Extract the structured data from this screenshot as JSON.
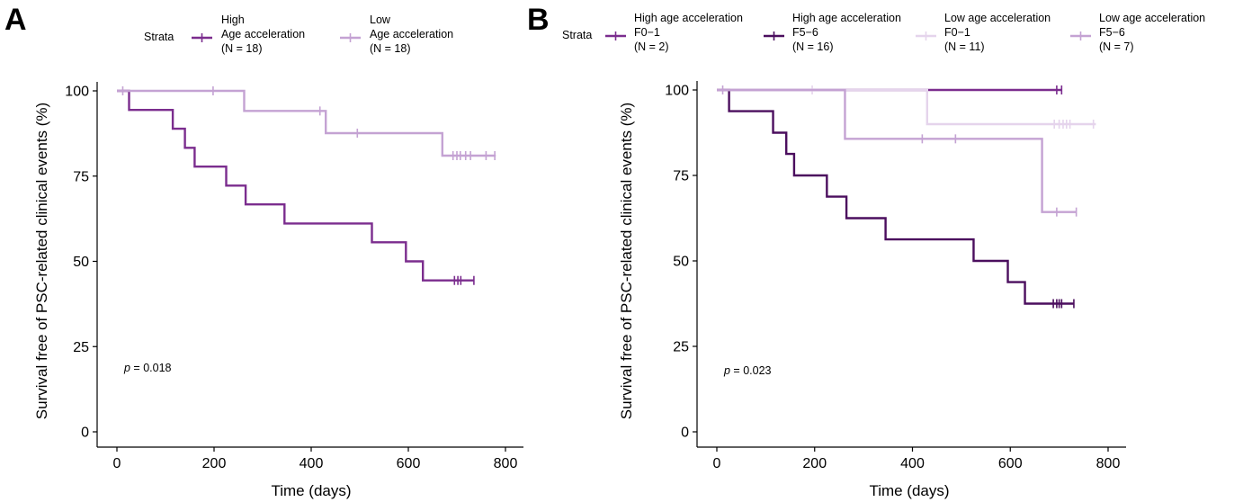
{
  "chart_data": [
    {
      "type": "line",
      "panel_label": "A",
      "legend_title": "Strata",
      "xlabel": "Time (days)",
      "ylabel": "Survival free of PSC-related clinical events (%)",
      "xlim": [
        0,
        800
      ],
      "ylim": [
        0,
        100
      ],
      "xticks": [
        0,
        200,
        400,
        600,
        800
      ],
      "yticks": [
        0,
        25,
        50,
        75,
        100
      ],
      "grid": false,
      "legend_position": "top",
      "p_symbol": "p",
      "p_value": " = 0.018",
      "series": [
        {
          "legend_lines": [
            "High",
            "Age acceleration",
            "(N = 18)"
          ],
          "color": "#7B2D8E",
          "steps": [
            [
              0,
              100
            ],
            [
              25,
              94.4
            ],
            [
              115,
              88.9
            ],
            [
              140,
              83.3
            ],
            [
              160,
              77.8
            ],
            [
              225,
              72.2
            ],
            [
              265,
              66.7
            ],
            [
              345,
              61.1
            ],
            [
              525,
              55.6
            ],
            [
              595,
              50.0
            ],
            [
              630,
              44.4
            ],
            [
              735,
              44.4
            ]
          ],
          "censored": [
            [
              695,
              44.4
            ],
            [
              702,
              44.4
            ],
            [
              708,
              44.4
            ],
            [
              735,
              44.4
            ]
          ]
        },
        {
          "legend_lines": [
            "Low",
            "Age acceleration",
            "(N = 18)"
          ],
          "color": "#C4A2D3",
          "steps": [
            [
              0,
              100
            ],
            [
              262,
              94.1
            ],
            [
              430,
              87.6
            ],
            [
              670,
              81.0
            ],
            [
              780,
              81.0
            ]
          ],
          "censored": [
            [
              12,
              100
            ],
            [
              198,
              100
            ],
            [
              418,
              94.1
            ],
            [
              495,
              87.6
            ],
            [
              692,
              81.0
            ],
            [
              700,
              81.0
            ],
            [
              707,
              81.0
            ],
            [
              718,
              81.0
            ],
            [
              728,
              81.0
            ],
            [
              760,
              81.0
            ],
            [
              778,
              81.0
            ]
          ]
        }
      ]
    },
    {
      "type": "line",
      "panel_label": "B",
      "legend_title": "Strata",
      "xlabel": "Time (days)",
      "ylabel": "Survival free of PSC-related clinical events (%)",
      "xlim": [
        0,
        800
      ],
      "ylim": [
        0,
        100
      ],
      "xticks": [
        0,
        200,
        400,
        600,
        800
      ],
      "yticks": [
        0,
        25,
        50,
        75,
        100
      ],
      "grid": false,
      "legend_position": "top",
      "p_symbol": "p",
      "p_value": " = 0.023",
      "series": [
        {
          "legend_lines": [
            "High age acceleration",
            "F0−1",
            "(N = 2)"
          ],
          "color": "#7B2D8E",
          "steps": [
            [
              0,
              100
            ],
            [
              705,
              100
            ]
          ],
          "censored": [
            [
              695,
              100
            ],
            [
              705,
              100
            ]
          ]
        },
        {
          "legend_lines": [
            "High age acceleration",
            "F5−6",
            "(N = 16)"
          ],
          "color": "#4B0E5E",
          "steps": [
            [
              0,
              100
            ],
            [
              25,
              93.8
            ],
            [
              115,
              87.5
            ],
            [
              142,
              81.3
            ],
            [
              158,
              75.0
            ],
            [
              225,
              68.8
            ],
            [
              265,
              62.5
            ],
            [
              345,
              56.3
            ],
            [
              525,
              50.0
            ],
            [
              595,
              43.8
            ],
            [
              630,
              37.5
            ],
            [
              730,
              37.5
            ]
          ],
          "censored": [
            [
              688,
              37.5
            ],
            [
              695,
              37.5
            ],
            [
              700,
              37.5
            ],
            [
              705,
              37.5
            ],
            [
              730,
              37.5
            ]
          ]
        },
        {
          "legend_lines": [
            "Low age acceleration",
            "F0−1",
            "(N = 11)"
          ],
          "color": "#E5D4EC",
          "steps": [
            [
              0,
              100
            ],
            [
              430,
              90.0
            ],
            [
              775,
              90.0
            ]
          ],
          "censored": [
            [
              195,
              100
            ],
            [
              690,
              90.0
            ],
            [
              700,
              90.0
            ],
            [
              708,
              90.0
            ],
            [
              715,
              90.0
            ],
            [
              722,
              90.0
            ],
            [
              770,
              90.0
            ]
          ]
        },
        {
          "legend_lines": [
            "Low age acceleration",
            "F5−6",
            "(N = 7)"
          ],
          "color": "#C4A2D3",
          "steps": [
            [
              0,
              100
            ],
            [
              262,
              85.7
            ],
            [
              665,
              64.3
            ],
            [
              735,
              64.3
            ]
          ],
          "censored": [
            [
              12,
              100
            ],
            [
              420,
              85.7
            ],
            [
              488,
              85.7
            ],
            [
              695,
              64.3
            ],
            [
              735,
              64.3
            ]
          ]
        }
      ]
    }
  ]
}
